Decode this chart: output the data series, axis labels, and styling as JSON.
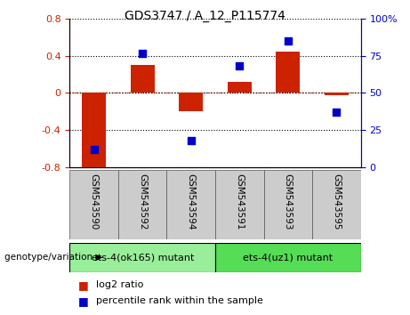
{
  "title": "GDS3747 / A_12_P115774",
  "categories": [
    "GSM543590",
    "GSM543592",
    "GSM543594",
    "GSM543591",
    "GSM543593",
    "GSM543595"
  ],
  "log2_ratio": [
    -0.85,
    0.3,
    -0.2,
    0.12,
    0.45,
    -0.02
  ],
  "percentile": [
    12,
    77,
    18,
    68,
    85,
    37
  ],
  "group1_label": "ets-4(ok165) mutant",
  "group2_label": "ets-4(uz1) mutant",
  "bar_color": "#cc2200",
  "dot_color": "#0000cc",
  "ylim_left": [
    -0.8,
    0.8
  ],
  "ylim_right": [
    0,
    100
  ],
  "yticks_left": [
    -0.8,
    -0.4,
    0.0,
    0.4,
    0.8
  ],
  "yticks_right": [
    0,
    25,
    50,
    75,
    100
  ],
  "legend_log2": "log2 ratio",
  "legend_pct": "percentile rank within the sample",
  "group1_color": "#99ee99",
  "group2_color": "#55dd55",
  "xlabel_color": "#888888",
  "bar_width": 0.5,
  "dot_size": 40,
  "title_fontsize": 10,
  "tick_fontsize": 8,
  "label_fontsize": 8
}
